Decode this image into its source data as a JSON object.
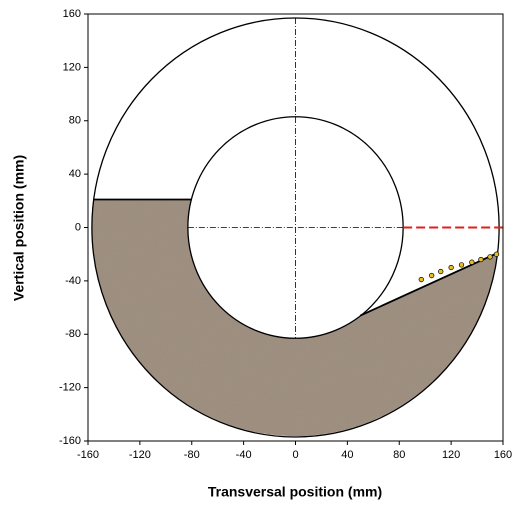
{
  "chart_data": {
    "type": "cross-section",
    "xlabel": "Transversal position (mm)",
    "ylabel": "Vertical position (mm)",
    "xlim": [
      -160,
      160
    ],
    "ylim": [
      -160,
      160
    ],
    "xticks": [
      -160,
      -120,
      -80,
      -40,
      0,
      40,
      80,
      120,
      160
    ],
    "yticks": [
      -160,
      -120,
      -80,
      -40,
      0,
      40,
      80,
      120,
      160
    ],
    "center": {
      "x": 0,
      "y": 0
    },
    "outer_radius": 157,
    "inner_radius": 83,
    "sediment_color": "#9c8c7c",
    "surface_left": {
      "x": [
        -156,
        -80
      ],
      "y": [
        21,
        21
      ]
    },
    "surface_right": {
      "x": [
        50,
        156
      ],
      "y": [
        -66,
        -19
      ]
    },
    "reference_line": {
      "x": [
        83,
        160
      ],
      "y": 0,
      "color": "#e0201b"
    },
    "particles": {
      "color": "#e8c020",
      "x": [
        97,
        105,
        112,
        120,
        128,
        136,
        143,
        150,
        155
      ],
      "y": [
        -39,
        -36,
        -33,
        -30,
        -28,
        -26,
        -24,
        -22,
        -20
      ]
    }
  }
}
